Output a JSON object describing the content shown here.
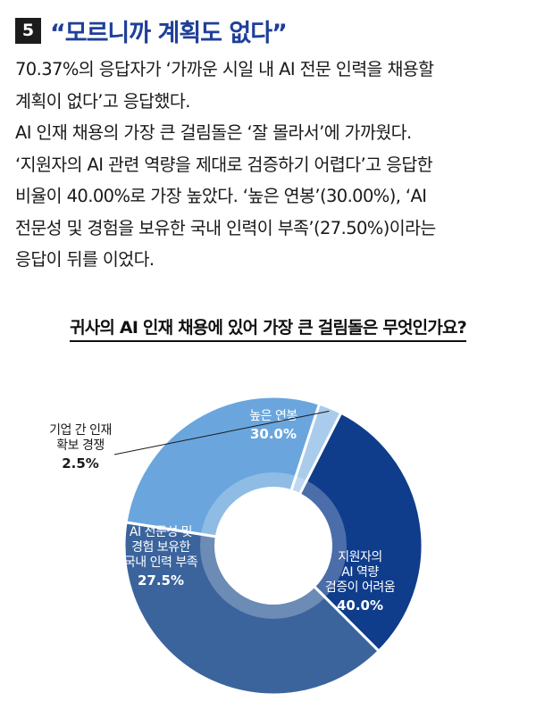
{
  "header": {
    "number": "5",
    "title": "“모르니까 계획도 없다”"
  },
  "body": {
    "paragraph1": "70.37%의 응답자가 ‘가까운 시일 내 AI 전문 인력을 채용할\n계획이 없다’고 응답했다.",
    "paragraph2": "AI 인재 채용의 가장 큰 걸림돌은 ‘잘 몰라서’에 가까웠다.\n‘지원자의 AI 관련 역량을 제대로 검증하기 어렵다’고 응답한\n비율이 40.00%로 가장 높았다. ‘높은 연봉’(30.00%), ‘AI\n전문성 및 경험을 보유한 국내 인력이 부족’(27.50%)이라는\n응답이 뒤를 이었다."
  },
  "chart_data": {
    "type": "pie",
    "title": "귀사의 AI 인재 채용에 있어 가장 큰 걸림돌은 무엇인가요?",
    "slices": [
      {
        "label": [
          "높은 연봉"
        ],
        "value": 30.0,
        "value_label": "30.0%",
        "color": "#0f3d8c",
        "text_color": "#ffffff"
      },
      {
        "label": [
          "지원자의",
          "AI 역량",
          "검증이 어려움"
        ],
        "value": 40.0,
        "value_label": "40.0%",
        "color": "#3b649d",
        "text_color": "#ffffff"
      },
      {
        "label": [
          "AI 전문성 및",
          "경험 보유한",
          "국내 인력 부족"
        ],
        "value": 27.5,
        "value_label": "27.5%",
        "color": "#6aa6dd",
        "text_color": "#ffffff"
      },
      {
        "label": [
          "기업 간 인재",
          "확보 경쟁"
        ],
        "value": 2.5,
        "value_label": "2.5%",
        "color": "#a9cbec",
        "text_color": "#1a1a1a"
      }
    ],
    "start_angle_deg": -63,
    "inner_ring_color": "#ffffff"
  }
}
